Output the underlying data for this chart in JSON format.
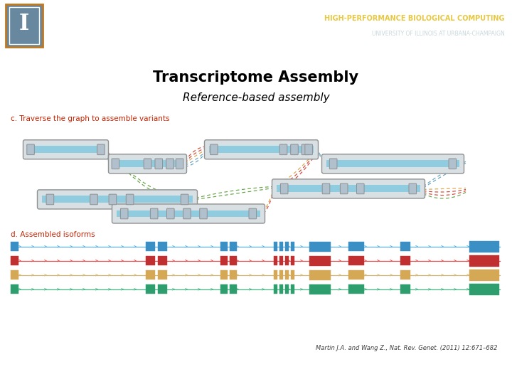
{
  "title": "Transcriptome Assembly",
  "subtitle": "Reference-based assembly",
  "label_c": "c. Traverse the graph to assemble variants",
  "label_d": "d. Assembled isoforms",
  "citation": "Martin J.A. and Wang Z., Nat. Rev. Genet. (2011) 12:671–682",
  "header_bg": "#5f9ea0",
  "header_sep": "#7ab0b8",
  "header_text1": "HIGH-PERFORMANCE BIOLOGICAL COMPUTING",
  "header_text2": "UNIVERSITY OF ILLINOIS AT URBANA-CHAMPAIGN",
  "header_text1_color": "#e8c840",
  "header_text2_color": "#c8d8dc",
  "logo_border_color": "#c07820",
  "logo_bg": "#6888a0",
  "isoform_colors": [
    "#3a8fc4",
    "#c03030",
    "#d4a855",
    "#2e9e6e"
  ],
  "isoform_line_colors": [
    "#5ab0e0",
    "#e05050",
    "#d4b870",
    "#40b880"
  ],
  "node_edge_color": "#909090",
  "node_fill_color": "#d8e0e4",
  "node_blue_fill": "#90cce0",
  "small_box_fill": "#b0c0cc",
  "red_label_color": "#cc2200",
  "bg_white": "#ffffff"
}
